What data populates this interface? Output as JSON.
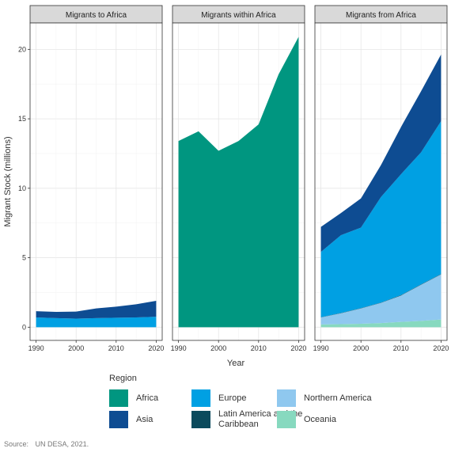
{
  "chart_data": {
    "type": "area",
    "ylabel": "Migrant Stock (millions)",
    "xlabel": "Year",
    "ylim": [
      0,
      21
    ],
    "yticks": [
      0,
      5,
      10,
      15,
      20
    ],
    "xticks": [
      1990,
      2000,
      2010,
      2020
    ],
    "x": [
      1990,
      1995,
      2000,
      2005,
      2010,
      2015,
      2020
    ],
    "stack_order": [
      "Oceania",
      "Northern America",
      "Latin America and the Caribbean",
      "Europe",
      "Asia",
      "Africa"
    ],
    "legend_title": "Region",
    "legend_position": "bottom",
    "grid": true,
    "colors": {
      "Africa": "#009680",
      "Asia": "#0E4C92",
      "Europe": "#00A0E3",
      "Latin America and the Caribbean": "#0B4A5C",
      "Northern America": "#8FC8EF",
      "Oceania": "#87D9BF"
    },
    "panels": [
      {
        "title": "Migrants to Africa",
        "series": [
          {
            "name": "Europe",
            "values": [
              0.7,
              0.65,
              0.62,
              0.65,
              0.68,
              0.7,
              0.75
            ]
          },
          {
            "name": "Asia",
            "values": [
              0.45,
              0.45,
              0.5,
              0.7,
              0.8,
              0.95,
              1.15
            ]
          },
          {
            "name": "Northern America",
            "values": [
              0.0,
              0.0,
              0.0,
              0.0,
              0.0,
              0.0,
              0.0
            ]
          },
          {
            "name": "Latin America and the Caribbean",
            "values": [
              0.0,
              0.0,
              0.0,
              0.0,
              0.0,
              0.0,
              0.0
            ]
          },
          {
            "name": "Oceania",
            "values": [
              0.0,
              0.0,
              0.0,
              0.0,
              0.0,
              0.0,
              0.0
            ]
          }
        ]
      },
      {
        "title": "Migrants within Africa",
        "series": [
          {
            "name": "Africa",
            "values": [
              13.4,
              14.1,
              12.7,
              13.4,
              14.6,
              18.2,
              20.9
            ]
          }
        ]
      },
      {
        "title": "Migrants from Africa",
        "series": [
          {
            "name": "Oceania",
            "values": [
              0.2,
              0.22,
              0.25,
              0.3,
              0.38,
              0.45,
              0.55
            ]
          },
          {
            "name": "Northern America",
            "values": [
              0.5,
              0.78,
              1.1,
              1.45,
              1.9,
              2.6,
              3.25
            ]
          },
          {
            "name": "Latin America and the Caribbean",
            "values": [
              0.02,
              0.02,
              0.02,
              0.02,
              0.03,
              0.03,
              0.03
            ]
          },
          {
            "name": "Europe",
            "values": [
              4.7,
              5.6,
              5.8,
              7.6,
              8.7,
              9.5,
              11.0
            ]
          },
          {
            "name": "Asia",
            "values": [
              1.8,
              1.6,
              2.1,
              2.3,
              3.4,
              4.4,
              4.8
            ]
          }
        ]
      }
    ]
  },
  "legend": {
    "title": "Region",
    "items": [
      {
        "label": "Africa",
        "color": "#009680"
      },
      {
        "label": "Asia",
        "color": "#0E4C92"
      },
      {
        "label": "Europe",
        "color": "#00A0E3"
      },
      {
        "label": "Latin America and the Caribbean",
        "color": "#0B4A5C"
      },
      {
        "label": "Northern America",
        "color": "#8FC8EF"
      },
      {
        "label": "Oceania",
        "color": "#87D9BF"
      }
    ]
  },
  "source": {
    "label": "Source:",
    "text": "UN DESA, 2021."
  }
}
